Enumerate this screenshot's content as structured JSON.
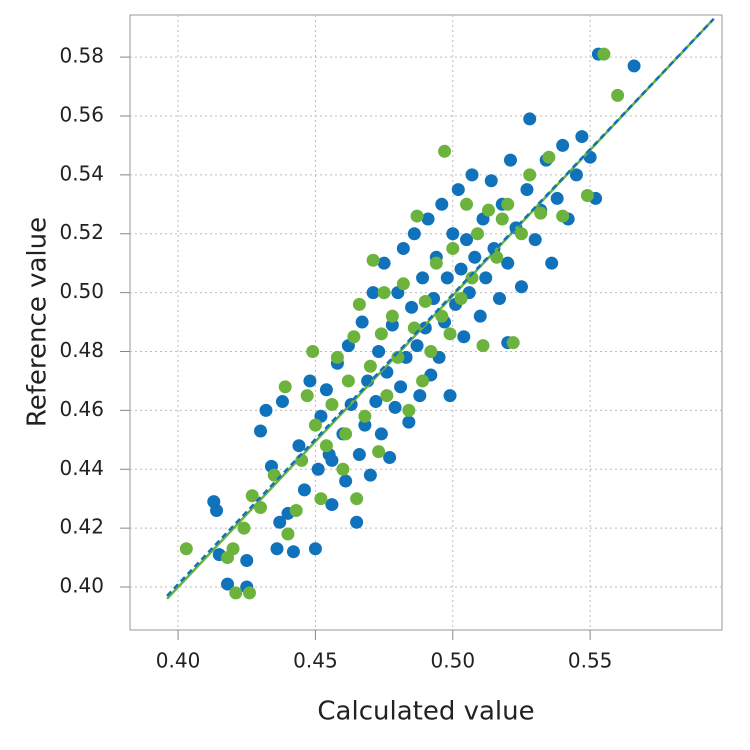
{
  "chart_data": {
    "type": "scatter",
    "x_label": "Calculated value",
    "y_label": "Reference value",
    "xlim": [
      0.3825,
      0.598
    ],
    "ylim": [
      0.3854,
      0.5943
    ],
    "xticks": [
      {
        "value": 0.4,
        "label": "0.40"
      },
      {
        "value": 0.45,
        "label": "0.45"
      },
      {
        "value": 0.5,
        "label": "0.50"
      },
      {
        "value": 0.55,
        "label": "0.55"
      }
    ],
    "yticks": [
      {
        "value": 0.4,
        "label": "0.40"
      },
      {
        "value": 0.42,
        "label": "0.42"
      },
      {
        "value": 0.44,
        "label": "0.44"
      },
      {
        "value": 0.46,
        "label": "0.46"
      },
      {
        "value": 0.48,
        "label": "0.48"
      },
      {
        "value": 0.5,
        "label": "0.50"
      },
      {
        "value": 0.52,
        "label": "0.52"
      },
      {
        "value": 0.54,
        "label": "0.54"
      },
      {
        "value": 0.56,
        "label": "0.56"
      },
      {
        "value": 0.58,
        "label": "0.58"
      }
    ],
    "grid": true,
    "series": [
      {
        "color": "#0f72ba",
        "x": [
          0.413,
          0.414,
          0.418,
          0.425,
          0.425,
          0.415,
          0.432,
          0.43,
          0.434,
          0.436,
          0.437,
          0.438,
          0.44,
          0.442,
          0.444,
          0.446,
          0.448,
          0.45,
          0.451,
          0.452,
          0.454,
          0.455,
          0.456,
          0.458,
          0.46,
          0.461,
          0.462,
          0.463,
          0.465,
          0.466,
          0.467,
          0.468,
          0.469,
          0.47,
          0.471,
          0.472,
          0.473,
          0.474,
          0.475,
          0.476,
          0.477,
          0.478,
          0.479,
          0.48,
          0.481,
          0.482,
          0.483,
          0.484,
          0.485,
          0.486,
          0.487,
          0.488,
          0.489,
          0.49,
          0.491,
          0.492,
          0.493,
          0.494,
          0.495,
          0.496,
          0.497,
          0.498,
          0.499,
          0.5,
          0.501,
          0.502,
          0.503,
          0.504,
          0.505,
          0.506,
          0.507,
          0.508,
          0.51,
          0.511,
          0.512,
          0.514,
          0.515,
          0.517,
          0.518,
          0.52,
          0.521,
          0.523,
          0.525,
          0.527,
          0.528,
          0.53,
          0.532,
          0.534,
          0.536,
          0.538,
          0.54,
          0.542,
          0.545,
          0.547,
          0.55,
          0.552,
          0.553,
          0.566,
          0.52,
          0.456
        ],
        "y": [
          0.429,
          0.426,
          0.401,
          0.409,
          0.4,
          0.411,
          0.46,
          0.453,
          0.441,
          0.413,
          0.422,
          0.463,
          0.425,
          0.412,
          0.448,
          0.433,
          0.47,
          0.413,
          0.44,
          0.458,
          0.467,
          0.445,
          0.428,
          0.476,
          0.452,
          0.436,
          0.482,
          0.462,
          0.422,
          0.445,
          0.49,
          0.455,
          0.47,
          0.438,
          0.5,
          0.463,
          0.48,
          0.452,
          0.51,
          0.473,
          0.444,
          0.489,
          0.461,
          0.5,
          0.468,
          0.515,
          0.478,
          0.456,
          0.495,
          0.52,
          0.482,
          0.465,
          0.505,
          0.488,
          0.525,
          0.472,
          0.498,
          0.512,
          0.478,
          0.53,
          0.49,
          0.505,
          0.465,
          0.52,
          0.496,
          0.535,
          0.508,
          0.485,
          0.518,
          0.5,
          0.54,
          0.512,
          0.492,
          0.525,
          0.505,
          0.538,
          0.515,
          0.498,
          0.53,
          0.51,
          0.545,
          0.522,
          0.502,
          0.535,
          0.559,
          0.518,
          0.528,
          0.545,
          0.51,
          0.532,
          0.55,
          0.525,
          0.54,
          0.553,
          0.546,
          0.532,
          0.581,
          0.577,
          0.483,
          0.443
        ]
      },
      {
        "color": "#6cb33e",
        "x": [
          0.403,
          0.418,
          0.42,
          0.421,
          0.426,
          0.424,
          0.427,
          0.43,
          0.435,
          0.439,
          0.44,
          0.443,
          0.445,
          0.447,
          0.449,
          0.45,
          0.452,
          0.454,
          0.456,
          0.458,
          0.46,
          0.462,
          0.464,
          0.465,
          0.466,
          0.468,
          0.47,
          0.471,
          0.473,
          0.474,
          0.476,
          0.478,
          0.48,
          0.482,
          0.484,
          0.486,
          0.487,
          0.489,
          0.49,
          0.492,
          0.494,
          0.496,
          0.497,
          0.499,
          0.5,
          0.503,
          0.505,
          0.507,
          0.509,
          0.511,
          0.513,
          0.516,
          0.518,
          0.52,
          0.522,
          0.525,
          0.528,
          0.532,
          0.535,
          0.54,
          0.549,
          0.555,
          0.56,
          0.475,
          0.461
        ],
        "y": [
          0.413,
          0.41,
          0.413,
          0.398,
          0.398,
          0.42,
          0.431,
          0.427,
          0.438,
          0.468,
          0.418,
          0.426,
          0.443,
          0.465,
          0.48,
          0.455,
          0.43,
          0.448,
          0.462,
          0.478,
          0.44,
          0.47,
          0.485,
          0.43,
          0.496,
          0.458,
          0.475,
          0.511,
          0.446,
          0.486,
          0.465,
          0.492,
          0.478,
          0.503,
          0.46,
          0.488,
          0.526,
          0.47,
          0.497,
          0.48,
          0.51,
          0.492,
          0.548,
          0.486,
          0.515,
          0.498,
          0.53,
          0.505,
          0.52,
          0.482,
          0.528,
          0.512,
          0.525,
          0.53,
          0.483,
          0.52,
          0.54,
          0.527,
          0.546,
          0.526,
          0.533,
          0.581,
          0.567,
          0.5,
          0.452
        ]
      }
    ],
    "fit_lines": [
      {
        "color": "#6cb33e",
        "dashed": false,
        "x": [
          0.396,
          0.595
        ],
        "y": [
          0.396,
          0.593
        ]
      },
      {
        "color": "#0f72ba",
        "dashed": true,
        "x": [
          0.396,
          0.595
        ],
        "y": [
          0.397,
          0.593
        ]
      }
    ]
  }
}
